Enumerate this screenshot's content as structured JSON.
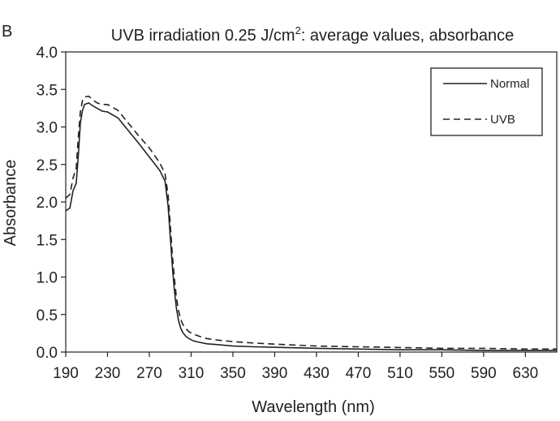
{
  "chart_data": {
    "type": "line",
    "panel_label": "B",
    "title": "UVB irradiation 0.25 J/cm",
    "title_superscript": "2",
    "title_suffix": ": average values, absorbance",
    "xlabel": "Wavelength (nm)",
    "ylabel": "Absorbance",
    "xlim": [
      190,
      660
    ],
    "ylim": [
      0,
      4.0
    ],
    "x_ticks": [
      190,
      230,
      270,
      310,
      350,
      390,
      430,
      470,
      510,
      550,
      590,
      630
    ],
    "x_tick_labels": [
      "190",
      "230",
      "270",
      "310",
      "350",
      "390",
      "430",
      "470",
      "510",
      "550",
      "590",
      "630"
    ],
    "y_ticks": [
      0,
      0.5,
      1.0,
      1.5,
      2.0,
      2.5,
      3.0,
      3.5,
      4.0
    ],
    "y_tick_labels": [
      "0.0",
      "0.5",
      "1.0",
      "1.5",
      "2.0",
      "2.5",
      "3.0",
      "3.5",
      "4.0"
    ],
    "legend_position": "top-right",
    "grid": false,
    "series": [
      {
        "name": "Normal",
        "style": "solid",
        "color": "#222222",
        "x": [
          190,
          194,
          197,
          200,
          202,
          204,
          206,
          208,
          212,
          216,
          220,
          225,
          230,
          240,
          250,
          260,
          270,
          280,
          285,
          288,
          290,
          292,
          294,
          296,
          298,
          300,
          302,
          305,
          308,
          312,
          318,
          325,
          335,
          350,
          370,
          400,
          430,
          470,
          510,
          550,
          590,
          630,
          660
        ],
        "y": [
          1.88,
          1.92,
          2.15,
          2.25,
          2.6,
          3.05,
          3.22,
          3.3,
          3.32,
          3.28,
          3.25,
          3.21,
          3.2,
          3.12,
          2.95,
          2.78,
          2.6,
          2.42,
          2.28,
          1.95,
          1.55,
          1.15,
          0.82,
          0.58,
          0.42,
          0.32,
          0.26,
          0.21,
          0.18,
          0.15,
          0.13,
          0.11,
          0.1,
          0.08,
          0.07,
          0.06,
          0.05,
          0.04,
          0.03,
          0.03,
          0.02,
          0.02,
          0.02
        ]
      },
      {
        "name": "UVB",
        "style": "dashed",
        "color": "#222222",
        "x": [
          190,
          194,
          197,
          200,
          202,
          204,
          206,
          208,
          212,
          216,
          220,
          225,
          230,
          240,
          250,
          260,
          270,
          280,
          285,
          288,
          290,
          292,
          294,
          296,
          298,
          300,
          302,
          305,
          308,
          312,
          318,
          325,
          335,
          350,
          370,
          400,
          430,
          470,
          510,
          550,
          590,
          630,
          660
        ],
        "y": [
          2.05,
          2.1,
          2.32,
          2.45,
          2.85,
          3.2,
          3.35,
          3.4,
          3.41,
          3.36,
          3.32,
          3.3,
          3.3,
          3.22,
          3.05,
          2.88,
          2.72,
          2.52,
          2.38,
          2.1,
          1.72,
          1.3,
          0.98,
          0.72,
          0.55,
          0.44,
          0.37,
          0.31,
          0.27,
          0.24,
          0.21,
          0.18,
          0.16,
          0.14,
          0.12,
          0.1,
          0.08,
          0.07,
          0.06,
          0.05,
          0.05,
          0.04,
          0.04
        ]
      }
    ]
  }
}
